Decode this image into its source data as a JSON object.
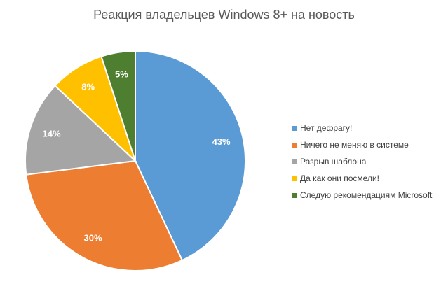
{
  "chart_data": {
    "type": "pie",
    "title": "Реакция владельцев Windows 8+ на новость",
    "legend_position": "right",
    "slices": [
      {
        "label": "Нет дефрагу!",
        "value": 43,
        "display": "43%",
        "color": "#5B9BD5"
      },
      {
        "label": "Ничего не меняю в системе",
        "value": 30,
        "display": "30%",
        "color": "#ED7D31"
      },
      {
        "label": "Разрыв шаблона",
        "value": 14,
        "display": "14%",
        "color": "#A5A5A5"
      },
      {
        "label": "Да как они посмели!",
        "value": 8,
        "display": "8%",
        "color": "#FFC000"
      },
      {
        "label": "Следую рекомендациям Microsoft",
        "value": 5,
        "display": "5%",
        "color": "#4E7F31"
      }
    ]
  }
}
